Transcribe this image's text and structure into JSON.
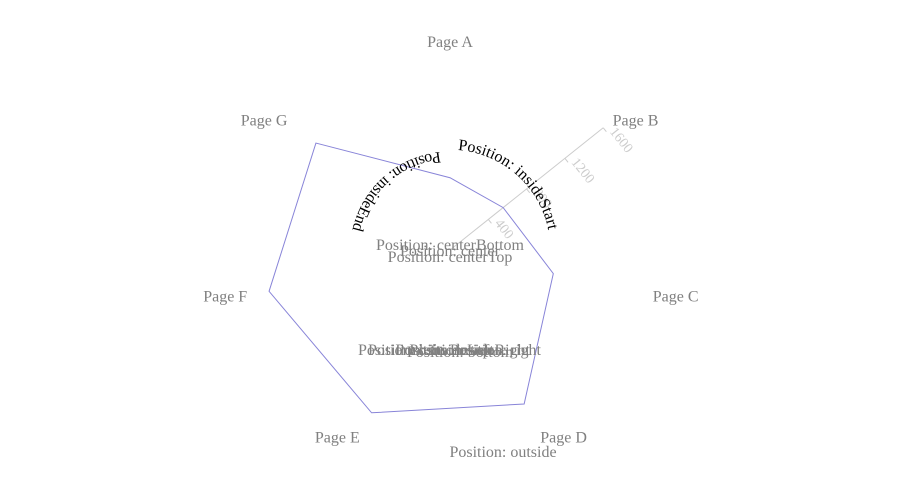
{
  "chart_data": {
    "type": "radar",
    "categories": [
      "Page A",
      "Page B",
      "Page C",
      "Page D",
      "Page E",
      "Page F",
      "Page G"
    ],
    "values": [
      590,
      555,
      865,
      1395,
      1475,
      1515,
      1400
    ],
    "color": "#8884d8",
    "rlim": [
      0,
      1600
    ],
    "rticks": [
      400,
      800,
      1200,
      1600
    ],
    "annotations": [
      "Position: insideEnd",
      "Position: insideStart",
      "Position: centerBottom",
      "Position: centerTop",
      "Position: center",
      "Position: outside",
      "Position: left",
      "Position: right",
      "Position: insideLeft",
      "Position: insideRight",
      "Position: top",
      "Position: bottom"
    ]
  }
}
